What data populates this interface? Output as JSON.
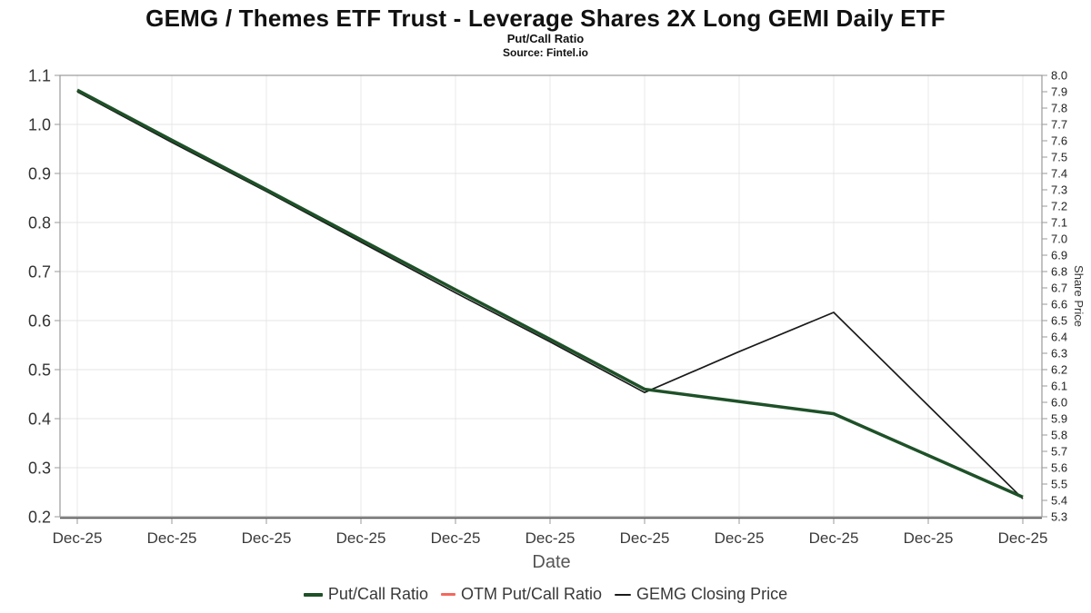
{
  "header": {
    "title": "GEMG / Themes ETF Trust - Leverage Shares 2X Long GEMI Daily ETF",
    "subtitle": "Put/Call Ratio",
    "source": "Source: Fintel.io"
  },
  "chart_data": {
    "type": "line",
    "title": "GEMG / Themes ETF Trust - Leverage Shares 2X Long GEMI Daily ETF",
    "subtitle": "Put/Call Ratio",
    "source": "Source: Fintel.io",
    "xlabel": "Date",
    "categories": [
      "Dec-25",
      "Dec-25",
      "Dec-25",
      "Dec-25",
      "Dec-25",
      "Dec-25",
      "Dec-25",
      "Dec-25",
      "Dec-25",
      "Dec-25",
      "Dec-25"
    ],
    "y_left": {
      "label": "",
      "min": 0.2,
      "max": 1.1,
      "tick_step": 0.1
    },
    "y_right": {
      "label": "Share Price",
      "min": 5.3,
      "max": 8.0,
      "tick_step": 0.1
    },
    "grid": true,
    "legend_position": "bottom",
    "series": [
      {
        "name": "Put/Call Ratio",
        "axis": "left",
        "color": "#1e5128",
        "values": [
          1.07,
          0.968,
          0.867,
          0.765,
          0.663,
          0.562,
          0.46,
          0.435,
          0.41,
          0.325,
          0.24
        ]
      },
      {
        "name": "OTM Put/Call Ratio",
        "axis": "left",
        "color": "#f4685c",
        "values": []
      },
      {
        "name": "GEMG Closing Price",
        "axis": "right",
        "color": "#1a1a1a",
        "values": [
          7.9,
          7.59,
          7.29,
          6.98,
          6.67,
          6.37,
          6.06,
          6.31,
          6.55,
          5.98,
          5.41
        ]
      }
    ]
  }
}
